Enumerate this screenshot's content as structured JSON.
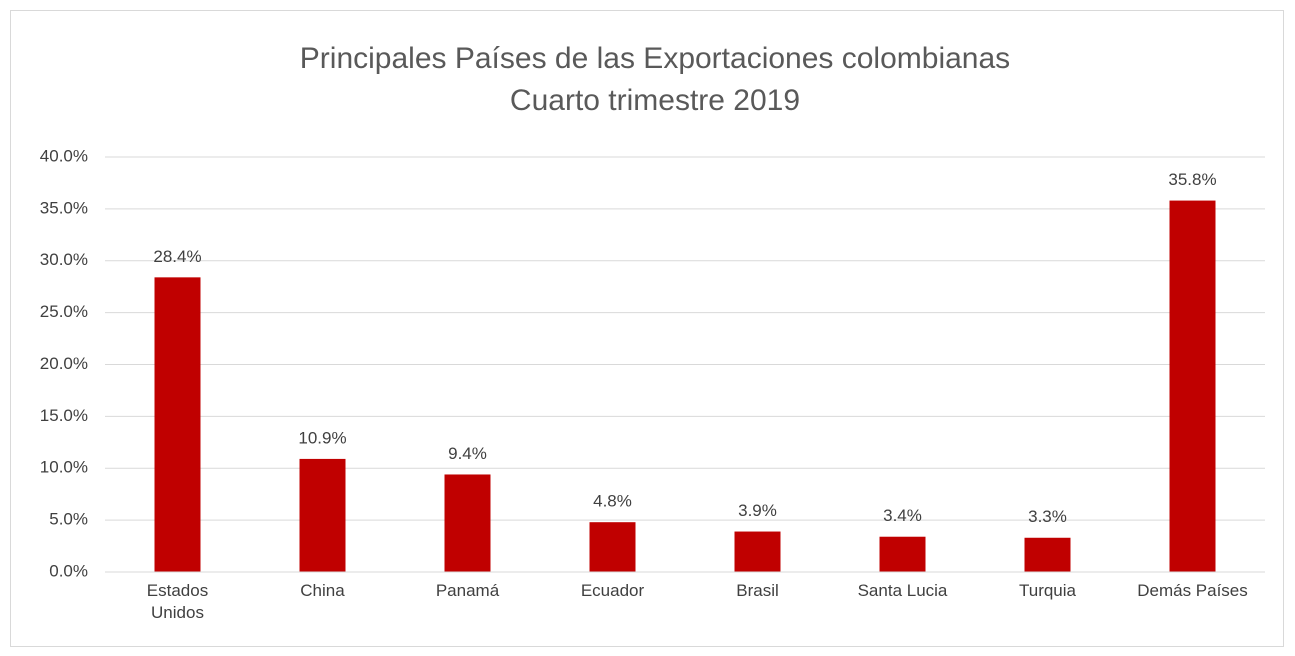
{
  "chart_data": {
    "type": "bar",
    "title": "Principales Países de las Exportaciones colombianas",
    "subtitle": "Cuarto trimestre 2019",
    "categories": [
      "Estados Unidos",
      "China",
      "Panamá",
      "Ecuador",
      "Brasil",
      "Santa Lucia",
      "Turquia",
      "Demás Países"
    ],
    "values": [
      28.4,
      10.9,
      9.4,
      4.8,
      3.9,
      3.4,
      3.3,
      35.8
    ],
    "value_labels": [
      "28.4%",
      "10.9%",
      "9.4%",
      "4.8%",
      "3.9%",
      "3.4%",
      "3.3%",
      "35.8%"
    ],
    "color": "#c00000",
    "ylim": [
      0,
      40
    ],
    "yticks": [
      {
        "value": 0,
        "label": "0.0%"
      },
      {
        "value": 5,
        "label": "5.0%"
      },
      {
        "value": 10,
        "label": "10.0%"
      },
      {
        "value": 15,
        "label": "15.0%"
      },
      {
        "value": 20,
        "label": "20.0%"
      },
      {
        "value": 25,
        "label": "25.0%"
      },
      {
        "value": 30,
        "label": "30.0%"
      },
      {
        "value": 35,
        "label": "35.0%"
      },
      {
        "value": 40,
        "label": "40.0%"
      }
    ],
    "grid": true
  }
}
